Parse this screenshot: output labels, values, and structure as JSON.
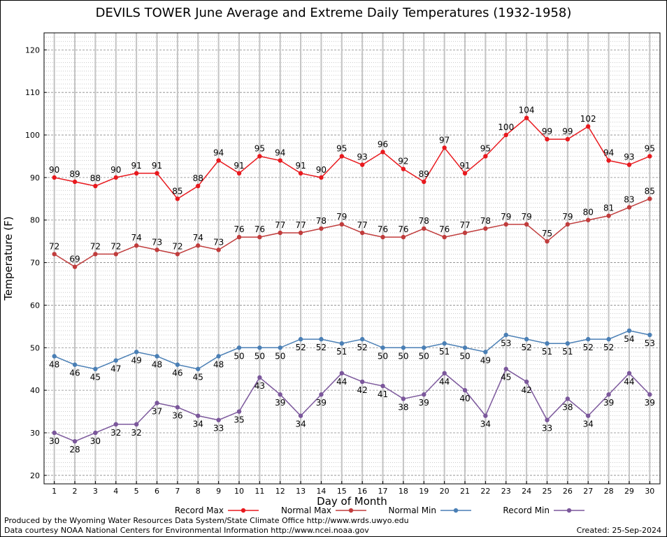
{
  "chart_data": {
    "type": "line",
    "title": "DEVILS TOWER June Average and Extreme Daily Temperatures (1932-1958)",
    "xlabel": "Day of Month",
    "ylabel": "Temperature (F)",
    "ylim": [
      18,
      124
    ],
    "yticks": [
      20,
      30,
      40,
      50,
      60,
      70,
      80,
      90,
      100,
      110,
      120
    ],
    "x": [
      1,
      2,
      3,
      4,
      5,
      6,
      7,
      8,
      9,
      10,
      11,
      12,
      13,
      14,
      15,
      16,
      17,
      18,
      19,
      20,
      21,
      22,
      23,
      24,
      25,
      26,
      27,
      28,
      29,
      30
    ],
    "grid": true,
    "legend_position": "bottom",
    "series": [
      {
        "name": "Record Max",
        "color": "#e8191e",
        "label_pos": "above",
        "values": [
          90,
          89,
          88,
          90,
          91,
          91,
          85,
          88,
          94,
          91,
          95,
          94,
          91,
          90,
          95,
          93,
          96,
          92,
          89,
          97,
          91,
          95,
          100,
          104,
          99,
          99,
          102,
          94,
          93,
          95
        ]
      },
      {
        "name": "Normal Max",
        "color": "#c03c3c",
        "label_pos": "above",
        "values": [
          72,
          69,
          72,
          72,
          74,
          73,
          72,
          74,
          73,
          76,
          76,
          77,
          77,
          78,
          79,
          77,
          76,
          76,
          78,
          76,
          77,
          78,
          79,
          79,
          75,
          79,
          80,
          81,
          83,
          85
        ]
      },
      {
        "name": "Normal Min",
        "color": "#4a7fb5",
        "label_pos": "below",
        "values": [
          48,
          46,
          45,
          47,
          49,
          48,
          46,
          45,
          48,
          50,
          50,
          50,
          52,
          52,
          51,
          52,
          50,
          50,
          50,
          51,
          50,
          49,
          53,
          52,
          51,
          51,
          52,
          52,
          54,
          53
        ]
      },
      {
        "name": "Record Min",
        "color": "#7b579b",
        "label_pos": "below",
        "values": [
          30,
          28,
          30,
          32,
          32,
          37,
          36,
          34,
          33,
          35,
          43,
          39,
          34,
          39,
          44,
          42,
          41,
          38,
          39,
          44,
          40,
          34,
          45,
          42,
          33,
          38,
          34,
          39,
          44,
          39
        ]
      }
    ]
  },
  "footer": {
    "produced_by": "Produced by the Wyoming Water Resources Data System/State Climate Office http://www.wrds.uwyo.edu",
    "data_courtesy": "Data courtesy NOAA National Centers for Environmental Information http://www.ncei.noaa.gov",
    "created": "Created: 25-Sep-2024"
  }
}
